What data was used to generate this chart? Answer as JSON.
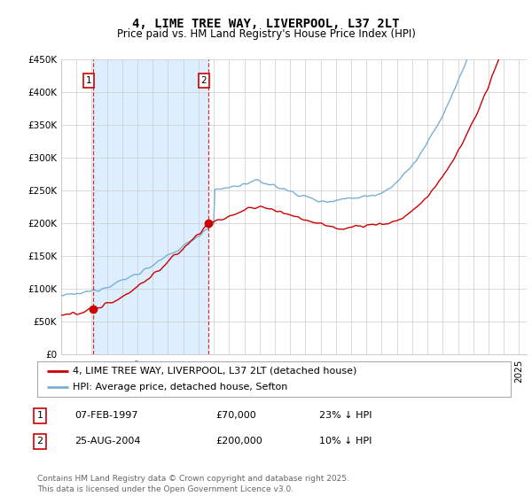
{
  "title": "4, LIME TREE WAY, LIVERPOOL, L37 2LT",
  "subtitle": "Price paid vs. HM Land Registry's House Price Index (HPI)",
  "ylabel_ticks": [
    "£0",
    "£50K",
    "£100K",
    "£150K",
    "£200K",
    "£250K",
    "£300K",
    "£350K",
    "£400K",
    "£450K"
  ],
  "ytick_values": [
    0,
    50000,
    100000,
    150000,
    200000,
    250000,
    300000,
    350000,
    400000,
    450000
  ],
  "ylim": [
    0,
    450000
  ],
  "xlim_start": 1995.0,
  "xlim_end": 2025.5,
  "sale1_date": 1997.1,
  "sale1_price": 70000,
  "sale2_date": 2004.65,
  "sale2_price": 200000,
  "line_color_property": "#cc0000",
  "line_color_hpi": "#7bafd4",
  "vline_color": "#cc0000",
  "fill_color": "#ddeeff",
  "grid_color": "#cccccc",
  "background_color": "#ffffff",
  "legend_label_property": "4, LIME TREE WAY, LIVERPOOL, L37 2LT (detached house)",
  "legend_label_hpi": "HPI: Average price, detached house, Sefton",
  "table_row1": [
    "1",
    "07-FEB-1997",
    "£70,000",
    "23% ↓ HPI"
  ],
  "table_row2": [
    "2",
    "25-AUG-2004",
    "£200,000",
    "10% ↓ HPI"
  ],
  "footnote": "Contains HM Land Registry data © Crown copyright and database right 2025.\nThis data is licensed under the Open Government Licence v3.0.",
  "title_fontsize": 10,
  "subtitle_fontsize": 8.5,
  "tick_fontsize": 7.5,
  "legend_fontsize": 8,
  "table_fontsize": 8,
  "footnote_fontsize": 6.5
}
